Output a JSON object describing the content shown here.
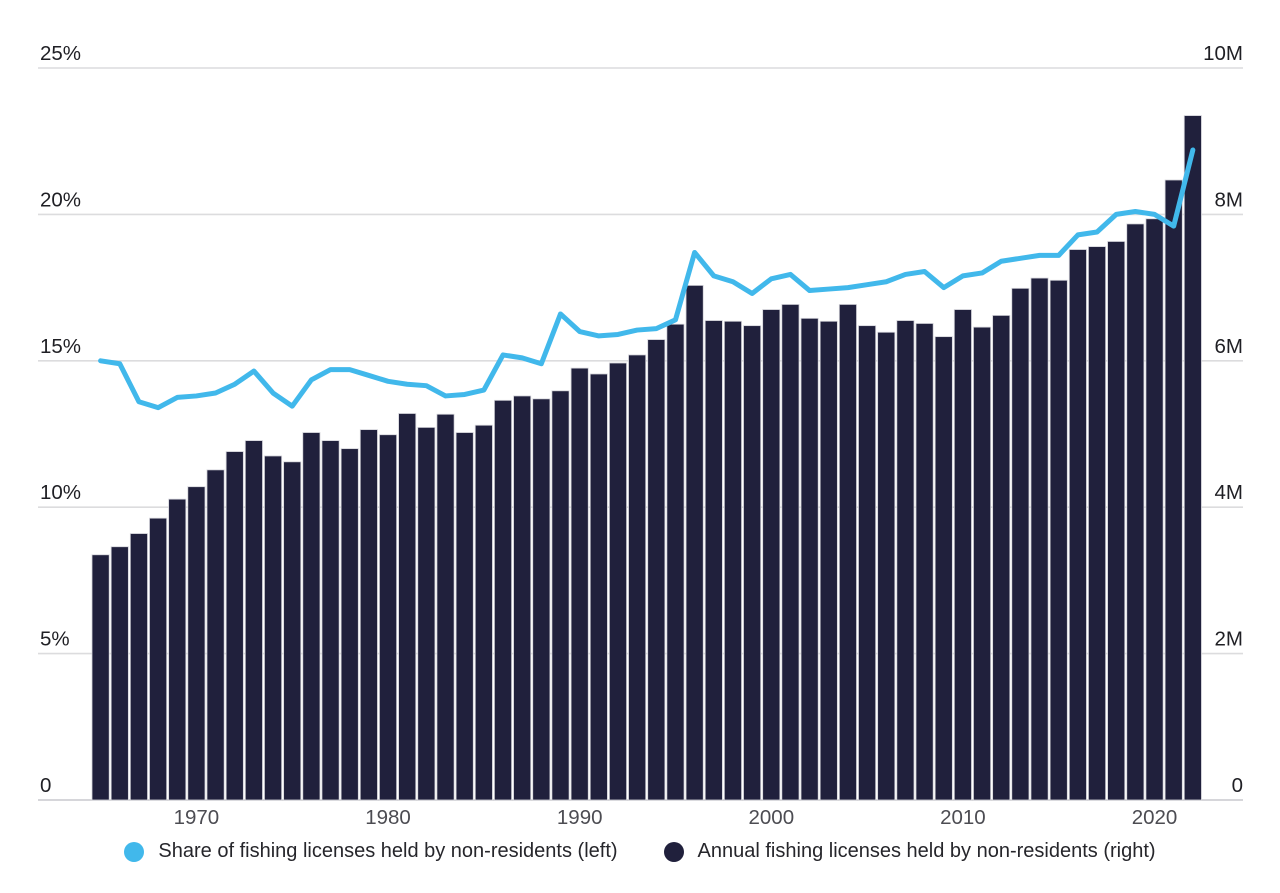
{
  "chart_data": {
    "type": "bar",
    "title": "",
    "x": [
      1965,
      1966,
      1967,
      1968,
      1969,
      1970,
      1971,
      1972,
      1973,
      1974,
      1975,
      1976,
      1977,
      1978,
      1979,
      1980,
      1981,
      1982,
      1983,
      1984,
      1985,
      1986,
      1987,
      1988,
      1989,
      1990,
      1991,
      1992,
      1993,
      1994,
      1995,
      1996,
      1997,
      1998,
      1999,
      2000,
      2001,
      2002,
      2003,
      2004,
      2005,
      2006,
      2007,
      2008,
      2009,
      2010,
      2011,
      2012,
      2013,
      2014,
      2015,
      2016,
      2017,
      2018,
      2019,
      2020,
      2021,
      2022
    ],
    "series": [
      {
        "name": "Share of fishing licenses held by non-residents (left)",
        "type": "line",
        "axis": "left",
        "unit": "%",
        "color": "#41b8eb",
        "values": [
          15.0,
          14.9,
          13.6,
          13.4,
          13.75,
          13.8,
          13.9,
          14.2,
          14.65,
          13.9,
          13.45,
          14.35,
          14.7,
          14.7,
          14.5,
          14.3,
          14.2,
          14.15,
          13.8,
          13.85,
          14.0,
          15.2,
          15.1,
          14.9,
          16.6,
          16.0,
          15.85,
          15.9,
          16.05,
          16.1,
          16.4,
          18.7,
          17.9,
          17.7,
          17.3,
          17.8,
          17.95,
          17.4,
          17.45,
          17.5,
          17.6,
          17.7,
          17.95,
          18.05,
          17.5,
          17.9,
          18.0,
          18.4,
          18.5,
          18.6,
          18.6,
          19.3,
          19.4,
          20.0,
          20.1,
          20.0,
          19.6,
          22.2
        ]
      },
      {
        "name": "Annual fishing licenses held by non-residents (right)",
        "type": "bar",
        "axis": "right",
        "unit": "M",
        "color": "#20203c",
        "values": [
          3.35,
          3.46,
          3.64,
          3.85,
          4.11,
          4.28,
          4.51,
          4.76,
          4.91,
          4.7,
          4.62,
          5.02,
          4.91,
          4.8,
          5.06,
          4.99,
          5.28,
          5.09,
          5.27,
          5.02,
          5.12,
          5.46,
          5.52,
          5.48,
          5.59,
          5.9,
          5.82,
          5.97,
          6.08,
          6.29,
          6.5,
          7.03,
          6.55,
          6.54,
          6.48,
          6.7,
          6.77,
          6.58,
          6.54,
          6.77,
          6.48,
          6.39,
          6.55,
          6.51,
          6.33,
          6.7,
          6.46,
          6.62,
          6.99,
          7.13,
          7.1,
          7.52,
          7.56,
          7.63,
          7.87,
          7.94,
          8.47,
          9.35
        ]
      }
    ],
    "left_axis": {
      "range": [
        0,
        25
      ],
      "tick_values": [
        0,
        5,
        10,
        15,
        20,
        25
      ],
      "tick_labels": [
        "0",
        "5%",
        "10%",
        "15%",
        "20%",
        "25%"
      ]
    },
    "right_axis": {
      "range": [
        0,
        10
      ],
      "tick_values": [
        0,
        2,
        4,
        6,
        8,
        10
      ],
      "tick_labels": [
        "0",
        "2M",
        "4M",
        "6M",
        "8M",
        "10M"
      ]
    },
    "x_ticks": [
      1970,
      1980,
      1990,
      2000,
      2010,
      2020
    ],
    "grid": true,
    "legend_position": "bottom",
    "colors": {
      "gridline": "#dcdcde",
      "baseline": "#c9c9cd",
      "axis_label_text": "#1f1f24",
      "year_label_text": "#4c4c52",
      "bar_outline": "#d4d4da"
    }
  }
}
